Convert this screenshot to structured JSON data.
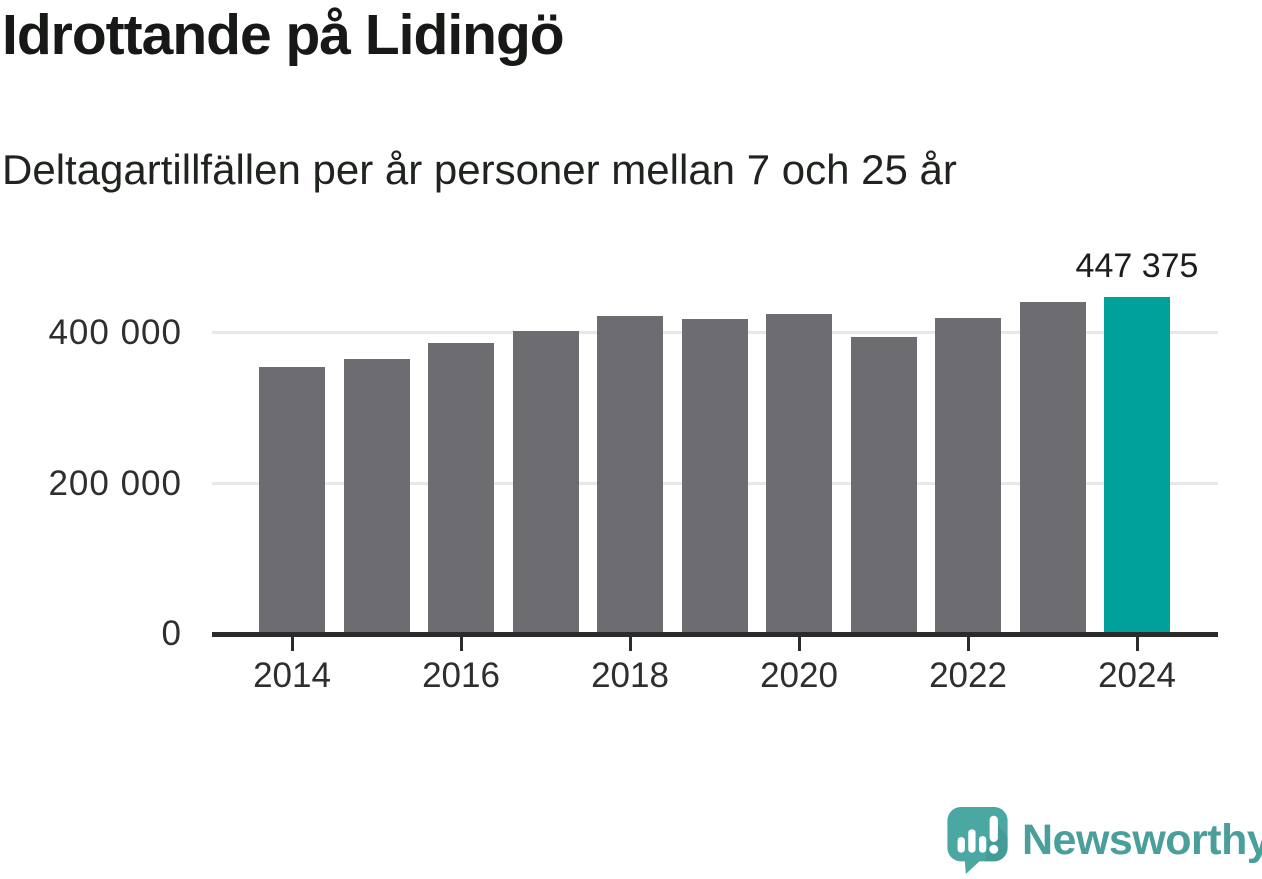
{
  "header": {
    "title": "Idrottande på Lidingö",
    "subtitle": "Deltagartillfällen per år personer mellan 7 och 25 år"
  },
  "chart_data": {
    "type": "bar",
    "title": "Idrottande på Lidingö",
    "subtitle": "Deltagartillfällen per år personer mellan 7 och 25 år",
    "categories": [
      "2014",
      "2015",
      "2016",
      "2017",
      "2018",
      "2019",
      "2020",
      "2021",
      "2022",
      "2023",
      "2024"
    ],
    "values": [
      355000,
      366000,
      386000,
      403000,
      422000,
      419000,
      425000,
      395000,
      420000,
      441000,
      447375
    ],
    "highlight_index": 10,
    "annotation": {
      "text": "447 375",
      "category": "2024"
    },
    "xlabel": "",
    "ylabel": "",
    "ylim": [
      0,
      457000
    ],
    "yticks": [
      {
        "value": 0,
        "label": "0"
      },
      {
        "value": 200000,
        "label": "200 000"
      },
      {
        "value": 400000,
        "label": "400 000"
      }
    ],
    "xticks": [
      "2014",
      "2016",
      "2018",
      "2020",
      "2022",
      "2024"
    ],
    "grid": true,
    "legend": false,
    "bar_color": "#6c6c71",
    "highlight_color": "#00a09b",
    "gridline_color": "#e8e8e8",
    "axis_color": "#2b2b2b",
    "axis_text_color": "#2e2e2e"
  },
  "footer": {
    "brand_name": "Newsworthy",
    "logo_icon": "bar-chart-speech-bubble-icon",
    "brand_color": "#4a9f9c",
    "logo_bubble_color": "#4ba7a2",
    "logo_shadow_color": "#3f948f"
  }
}
